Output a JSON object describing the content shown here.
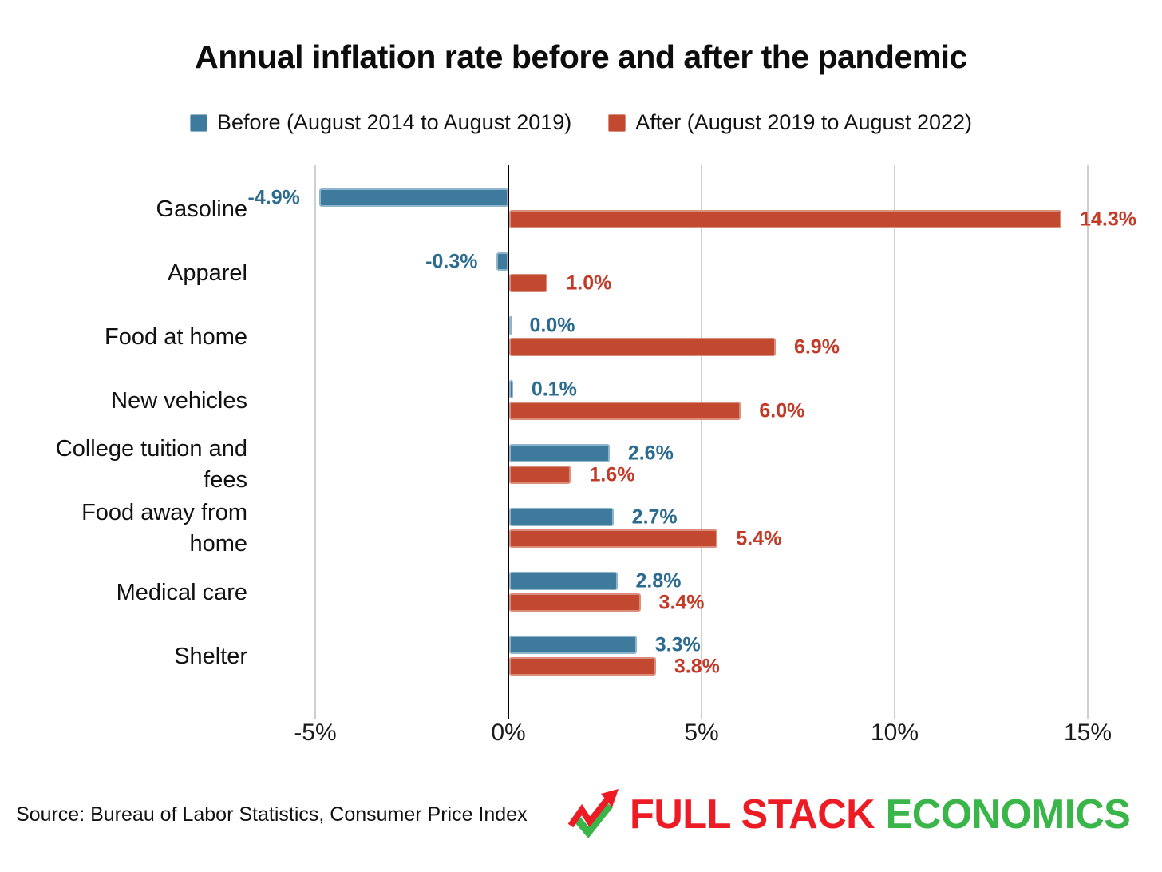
{
  "title": "Annual inflation rate before and after the pandemic",
  "legend": {
    "before": "Before (August 2014 to August 2019)",
    "after": "After (August 2019 to August 2022)"
  },
  "chart_data": {
    "type": "bar",
    "orientation": "horizontal",
    "title": "Annual inflation rate before and after the pandemic",
    "categories": [
      "Gasoline",
      "Apparel",
      "Food at home",
      "New vehicles",
      "College tuition and fees",
      "Food away from home",
      "Medical care",
      "Shelter"
    ],
    "category_display": [
      "Gasoline",
      "Apparel",
      "Food at home",
      "New vehicles",
      "College tuition and\nfees",
      "Food away from\nhome",
      "Medical care",
      "Shelter"
    ],
    "series": [
      {
        "name": "Before (August 2014 to August 2019)",
        "key": "before",
        "color": "#3d7a9b",
        "values": [
          -4.9,
          -0.3,
          0.0,
          0.1,
          2.6,
          2.7,
          2.8,
          3.3
        ]
      },
      {
        "name": "After (August 2019 to August 2022)",
        "key": "after",
        "color": "#c2492f",
        "values": [
          14.3,
          1.0,
          6.9,
          6.0,
          1.6,
          5.4,
          3.4,
          3.8
        ]
      }
    ],
    "value_labels": [
      [
        "-4.9%",
        "-0.3%",
        "0.0%",
        "0.1%",
        "2.6%",
        "2.7%",
        "2.8%",
        "3.3%"
      ],
      [
        "14.3%",
        "1.0%",
        "6.9%",
        "6.0%",
        "1.6%",
        "5.4%",
        "3.4%",
        "3.8%"
      ]
    ],
    "x_ticks": [
      "-5%",
      "0%",
      "5%",
      "10%",
      "15%"
    ],
    "x_tick_values": [
      -5,
      0,
      5,
      10,
      15
    ],
    "xlim": [
      -5,
      15
    ],
    "grid": true,
    "legend_position": "top"
  },
  "colors": {
    "before_bar": "#3d7a9b",
    "after_bar": "#c2492f",
    "before_label": "#2b6b8f",
    "after_label": "#c23b28",
    "gridline": "#cfcfcf",
    "zero_axis": "#000000"
  },
  "source": "Source: Bureau of Labor Statistics, Consumer Price Index",
  "logo": {
    "part1": "FULL STACK",
    "part2": "ECONOMICS",
    "red": "#ed1c24",
    "green": "#39b54a"
  }
}
